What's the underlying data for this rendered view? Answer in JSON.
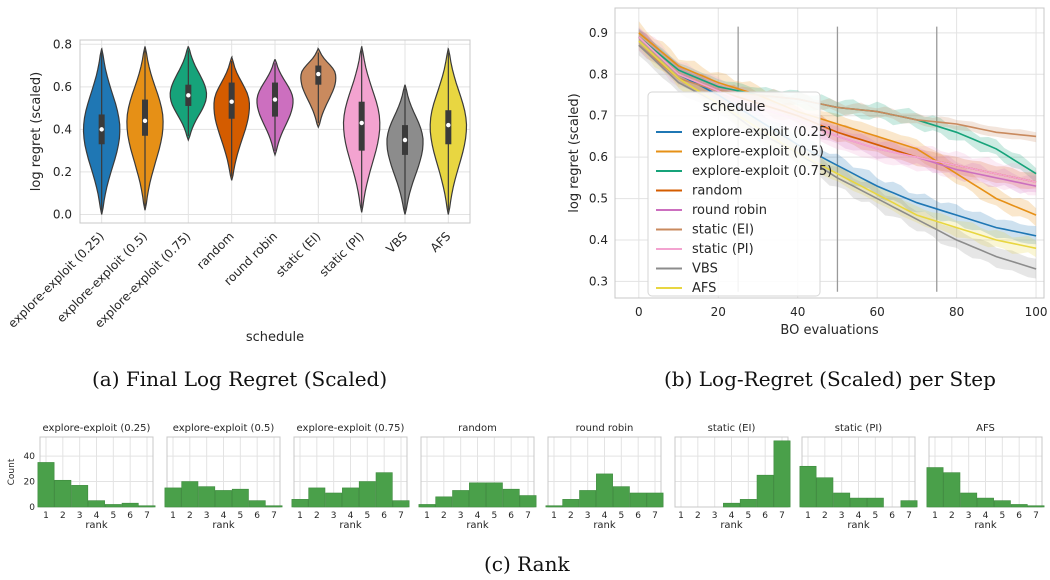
{
  "captions": {
    "a": "(a) Final Log Regret (Scaled)",
    "b": "(b) Log-Regret (Scaled) per Step",
    "c": "(c) Rank"
  },
  "colors": {
    "explore-exploit (0.25)": "#1f77b4",
    "explore-exploit (0.5)": "#e69016",
    "explore-exploit (0.75)": "#16a37a",
    "random": "#d45c00",
    "round robin": "#cc6fbf",
    "static (EI)": "#c98a5e",
    "static (PI)": "#f3a3d0",
    "VBS": "#8c8c8c",
    "AFS": "#e8d641",
    "hist_bar": "#4aa04a"
  },
  "chart_data": [
    {
      "type": "violin",
      "xlabel": "schedule",
      "ylabel": "log regret (scaled)",
      "ylim": [
        -0.04,
        0.82
      ],
      "yticks": [
        "0.0",
        "0.2",
        "0.4",
        "0.6",
        "0.8"
      ],
      "grid": true,
      "series": [
        {
          "name": "explore-exploit (0.25)",
          "min": 0.0,
          "max": 0.78,
          "q1": 0.33,
          "q3": 0.47,
          "median": 0.4
        },
        {
          "name": "explore-exploit (0.5)",
          "min": 0.02,
          "max": 0.79,
          "q1": 0.37,
          "q3": 0.54,
          "median": 0.44
        },
        {
          "name": "explore-exploit (0.75)",
          "min": 0.35,
          "max": 0.79,
          "q1": 0.51,
          "q3": 0.61,
          "median": 0.56
        },
        {
          "name": "random",
          "min": 0.16,
          "max": 0.74,
          "q1": 0.45,
          "q3": 0.62,
          "median": 0.53
        },
        {
          "name": "round robin",
          "min": 0.28,
          "max": 0.73,
          "q1": 0.46,
          "q3": 0.62,
          "median": 0.54
        },
        {
          "name": "static (EI)",
          "min": 0.41,
          "max": 0.78,
          "q1": 0.61,
          "q3": 0.7,
          "median": 0.66
        },
        {
          "name": "static (PI)",
          "min": 0.01,
          "max": 0.79,
          "q1": 0.3,
          "q3": 0.53,
          "median": 0.43
        },
        {
          "name": "VBS",
          "min": 0.0,
          "max": 0.61,
          "q1": 0.28,
          "q3": 0.42,
          "median": 0.35
        },
        {
          "name": "AFS",
          "min": 0.0,
          "max": 0.78,
          "q1": 0.33,
          "q3": 0.49,
          "median": 0.42
        }
      ]
    },
    {
      "type": "line",
      "xlabel": "BO evaluations",
      "ylabel": "log regret (scaled)",
      "xlim": [
        -6,
        102
      ],
      "ylim": [
        0.26,
        0.96
      ],
      "xticks": [
        "0",
        "20",
        "40",
        "60",
        "80",
        "100"
      ],
      "yticks": [
        "0.3",
        "0.4",
        "0.5",
        "0.6",
        "0.7",
        "0.8",
        "0.9"
      ],
      "grid": true,
      "legend": {
        "title": "schedule",
        "placement": "center-left"
      },
      "vlines": [
        25,
        50,
        75
      ],
      "vline_range": [
        0.275,
        0.915
      ],
      "x": [
        0,
        10,
        20,
        30,
        40,
        50,
        60,
        70,
        80,
        90,
        100
      ],
      "series": [
        {
          "name": "explore-exploit (0.25)",
          "values": [
            0.89,
            0.8,
            0.75,
            0.69,
            0.63,
            0.58,
            0.53,
            0.49,
            0.46,
            0.43,
            0.41
          ],
          "band": 0.022
        },
        {
          "name": "explore-exploit (0.5)",
          "values": [
            0.9,
            0.82,
            0.78,
            0.75,
            0.71,
            0.68,
            0.65,
            0.62,
            0.56,
            0.5,
            0.46
          ],
          "band": 0.022
        },
        {
          "name": "explore-exploit (0.75)",
          "values": [
            0.89,
            0.81,
            0.77,
            0.75,
            0.74,
            0.72,
            0.71,
            0.69,
            0.66,
            0.62,
            0.56
          ],
          "band": 0.018
        },
        {
          "name": "random",
          "values": [
            0.89,
            0.8,
            0.76,
            0.73,
            0.7,
            0.66,
            0.63,
            0.6,
            0.58,
            0.56,
            0.54
          ],
          "band": 0.02
        },
        {
          "name": "round robin",
          "values": [
            0.89,
            0.8,
            0.76,
            0.72,
            0.69,
            0.65,
            0.62,
            0.6,
            0.57,
            0.55,
            0.53
          ],
          "band": 0.02
        },
        {
          "name": "static (EI)",
          "values": [
            0.87,
            0.79,
            0.76,
            0.75,
            0.74,
            0.72,
            0.71,
            0.69,
            0.68,
            0.66,
            0.65
          ],
          "band": 0.012
        },
        {
          "name": "static (PI)",
          "values": [
            0.89,
            0.8,
            0.76,
            0.72,
            0.69,
            0.65,
            0.62,
            0.6,
            0.58,
            0.56,
            0.54
          ],
          "band": 0.03
        },
        {
          "name": "VBS",
          "values": [
            0.87,
            0.78,
            0.73,
            0.66,
            0.61,
            0.55,
            0.5,
            0.45,
            0.4,
            0.36,
            0.33
          ],
          "band": 0.024
        },
        {
          "name": "AFS",
          "values": [
            0.88,
            0.79,
            0.73,
            0.67,
            0.61,
            0.56,
            0.51,
            0.46,
            0.43,
            0.4,
            0.38
          ],
          "band": 0.02
        }
      ]
    },
    {
      "type": "bar",
      "layout": "small-multiples",
      "xlabel": "rank",
      "ylabel": "Count",
      "ylim": [
        0,
        55
      ],
      "yticks": [
        "0",
        "20",
        "40"
      ],
      "xticks": [
        "1",
        "2",
        "3",
        "4",
        "5",
        "6",
        "7"
      ],
      "categories": [
        1,
        2,
        3,
        4,
        5,
        6,
        7
      ],
      "panels": [
        {
          "name": "explore-exploit (0.25)",
          "values": [
            35,
            21,
            17,
            5,
            2,
            3,
            1
          ]
        },
        {
          "name": "explore-exploit (0.5)",
          "values": [
            15,
            20,
            16,
            13,
            14,
            5,
            1
          ]
        },
        {
          "name": "explore-exploit (0.75)",
          "values": [
            6,
            15,
            11,
            15,
            20,
            27,
            5
          ]
        },
        {
          "name": "random",
          "values": [
            2,
            8,
            13,
            19,
            19,
            14,
            9
          ]
        },
        {
          "name": "round robin",
          "values": [
            1,
            6,
            13,
            26,
            16,
            11,
            11
          ]
        },
        {
          "name": "static (EI)",
          "values": [
            0,
            0,
            0,
            3,
            6,
            25,
            52
          ]
        },
        {
          "name": "static (PI)",
          "values": [
            32,
            23,
            11,
            7,
            7,
            0,
            5
          ]
        },
        {
          "name": "AFS",
          "values": [
            31,
            27,
            11,
            7,
            5,
            2,
            1
          ]
        }
      ]
    }
  ]
}
